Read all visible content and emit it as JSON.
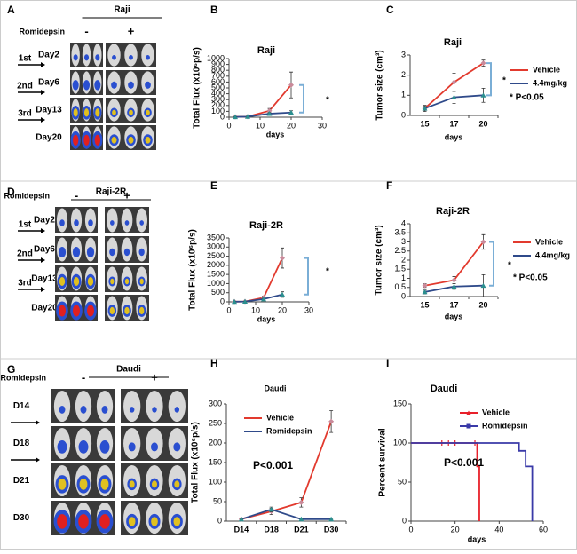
{
  "image_panels": [
    {
      "letter": "A",
      "title": "Raji",
      "treatment": "Romidepsin",
      "groups": [
        "-",
        "+"
      ],
      "rows": [
        "Day2",
        "Day6",
        "Day13",
        "Day20"
      ],
      "doses": [
        "1st",
        "2nd",
        "3rd"
      ]
    },
    {
      "letter": "D",
      "title": "Raji-2R",
      "treatment": "Romidepsin",
      "groups": [
        "-",
        "+"
      ],
      "rows": [
        "Day2",
        "Day6",
        "Day13",
        "Day20"
      ],
      "doses": [
        "1st",
        "2nd",
        "3rd"
      ]
    },
    {
      "letter": "G",
      "title": "Daudi",
      "treatment": "Romidepsin",
      "groups": [
        "-",
        "+"
      ],
      "rows": [
        "D14",
        "D18",
        "D21",
        "D30"
      ]
    }
  ],
  "chart_data": [
    {
      "letter": "B",
      "type": "line",
      "title": "Raji",
      "xlabel": "days",
      "ylabel": "Total Flux (x10⁶p/s)",
      "x": [
        2,
        6,
        13,
        20
      ],
      "xlim": [
        0,
        30
      ],
      "xticks": [
        0,
        10,
        20,
        30
      ],
      "ylim": [
        0,
        1000
      ],
      "yticks": [
        0,
        100,
        200,
        300,
        400,
        500,
        600,
        700,
        800,
        900,
        1000
      ],
      "series": [
        {
          "color": "#e23a2e",
          "marker": "diamond",
          "marker_color": "#c98a9a",
          "values": [
            5,
            10,
            110,
            550
          ],
          "errors": [
            3,
            5,
            40,
            220
          ]
        },
        {
          "color": "#2f4a8a",
          "marker": "triangle",
          "marker_color": "#2b8f8f",
          "values": [
            5,
            10,
            60,
            80
          ],
          "errors": [
            3,
            5,
            20,
            30
          ]
        }
      ],
      "annotations": [
        "*"
      ]
    },
    {
      "letter": "C",
      "type": "line",
      "title": "Raji",
      "xlabel": "days",
      "ylabel": "Tumor size (cm³)",
      "categories": [
        "15",
        "17",
        "20"
      ],
      "ylim": [
        0,
        3
      ],
      "yticks": [
        0,
        1,
        2,
        3
      ],
      "series": [
        {
          "name": "Vehicle",
          "color": "#e23a2e",
          "marker": "diamond",
          "marker_color": "#c98a9a",
          "values": [
            0.35,
            1.65,
            2.6
          ],
          "errors": [
            0.1,
            0.45,
            0.15
          ]
        },
        {
          "name": "4.4mg/kg",
          "color": "#2f4a8a",
          "marker": "triangle",
          "marker_color": "#2b8f8f",
          "values": [
            0.35,
            0.9,
            1.0
          ],
          "errors": [
            0.15,
            0.3,
            0.35
          ]
        }
      ],
      "annotations": [
        "*",
        "* P<0.05"
      ]
    },
    {
      "letter": "E",
      "type": "line",
      "title": "Raji-2R",
      "xlabel": "days",
      "ylabel": "Total Flux (x10⁶p/s)",
      "x": [
        2,
        6,
        13,
        20
      ],
      "xlim": [
        0,
        30
      ],
      "xticks": [
        0,
        10,
        20,
        30
      ],
      "ylim": [
        0,
        3500
      ],
      "yticks": [
        0,
        500,
        1000,
        1500,
        2000,
        2500,
        3000,
        3500
      ],
      "series": [
        {
          "color": "#e23a2e",
          "marker": "diamond",
          "marker_color": "#c98a9a",
          "values": [
            10,
            20,
            230,
            2400
          ],
          "errors": [
            5,
            10,
            80,
            550
          ]
        },
        {
          "color": "#2f4a8a",
          "marker": "triangle",
          "marker_color": "#2b8f8f",
          "values": [
            10,
            20,
            150,
            400
          ],
          "errors": [
            5,
            10,
            50,
            150
          ]
        }
      ],
      "annotations": [
        "*"
      ]
    },
    {
      "letter": "F",
      "type": "line",
      "title": "Raji-2R",
      "xlabel": "days",
      "ylabel": "Tumor size (cm³)",
      "categories": [
        "15",
        "17",
        "20"
      ],
      "ylim": [
        0,
        4
      ],
      "yticks": [
        0,
        0.5,
        1,
        1.5,
        2,
        2.5,
        3,
        3.5,
        4
      ],
      "series": [
        {
          "name": "Vehicle",
          "color": "#e23a2e",
          "marker": "diamond",
          "marker_color": "#c98a9a",
          "values": [
            0.6,
            0.9,
            3.0
          ],
          "errors": [
            0.1,
            0.2,
            0.4
          ]
        },
        {
          "name": "4.4mg/kg",
          "color": "#2f4a8a",
          "marker": "triangle",
          "marker_color": "#2b8f8f",
          "values": [
            0.25,
            0.55,
            0.6
          ],
          "errors": [
            0.1,
            0.15,
            0.6
          ]
        }
      ],
      "annotations": [
        "*",
        "* P<0.05"
      ]
    },
    {
      "letter": "H",
      "type": "line",
      "title": "Daudi",
      "ylabel": "Total Flux (x10⁶p/s)",
      "categories": [
        "D14",
        "D18",
        "D21",
        "D30"
      ],
      "ylim": [
        0,
        300
      ],
      "yticks": [
        0,
        50,
        100,
        150,
        200,
        250,
        300
      ],
      "series": [
        {
          "name": "Vehicle",
          "color": "#e23a2e",
          "marker": "diamond",
          "marker_color": "#c98a9a",
          "values": [
            5,
            25,
            48,
            255
          ],
          "errors": [
            2,
            8,
            12,
            28
          ]
        },
        {
          "name": "Romidepsin",
          "color": "#2f4a8a",
          "marker": "triangle",
          "marker_color": "#2b8f8f",
          "values": [
            5,
            30,
            5,
            5
          ],
          "errors": [
            2,
            6,
            2,
            2
          ]
        }
      ],
      "annotations": [
        "P<0.001"
      ]
    },
    {
      "letter": "I",
      "type": "step",
      "title": "Daudi",
      "xlabel": "days",
      "ylabel": "Percent survival",
      "xlim": [
        0,
        60
      ],
      "xticks": [
        0,
        20,
        40,
        60
      ],
      "ylim": [
        0,
        150
      ],
      "yticks": [
        0,
        50,
        100,
        150
      ],
      "series": [
        {
          "name": "Vehicle",
          "color": "#e8202a",
          "marker": "triangle",
          "x": [
            0,
            30,
            31
          ],
          "values": [
            100,
            70,
            0
          ],
          "censored": [
            14,
            17,
            20,
            29
          ]
        },
        {
          "name": "Romidepsin",
          "color": "#3a3aa8",
          "marker": "square",
          "x": [
            0,
            49,
            52,
            55
          ],
          "values": [
            100,
            90,
            70,
            0
          ],
          "censored": []
        }
      ],
      "annotations": [
        "P<0.001"
      ]
    }
  ]
}
